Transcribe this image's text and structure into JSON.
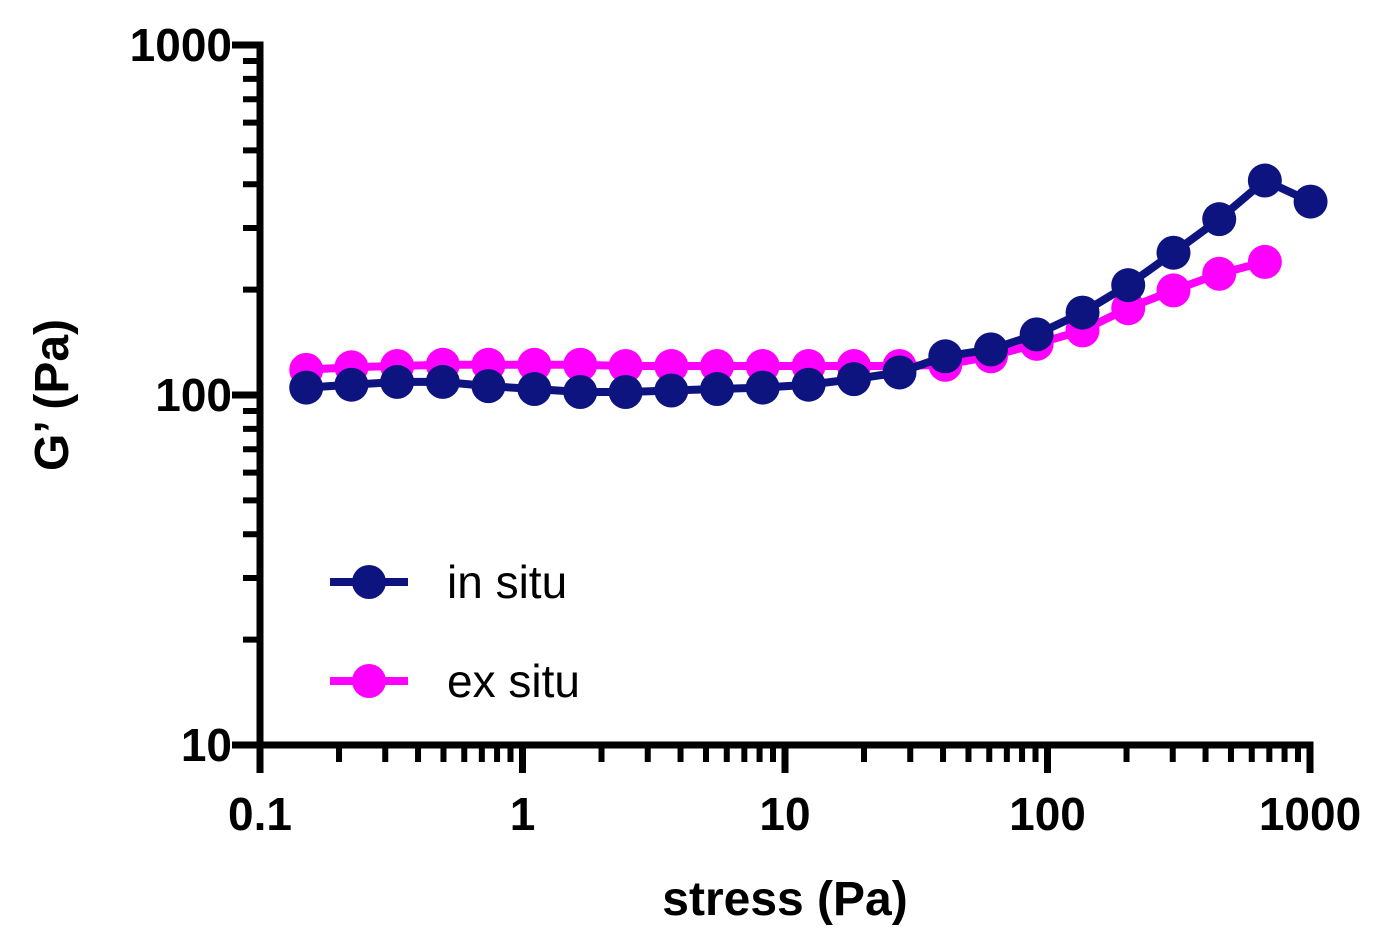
{
  "chart_data": {
    "type": "line",
    "title": "",
    "xlabel": "stress (Pa)",
    "ylabel": "G’ (Pa)",
    "xscale": "log",
    "yscale": "log",
    "xlim": [
      0.1,
      1000
    ],
    "ylim": [
      10,
      1000
    ],
    "xticks": [
      {
        "value": 0.1,
        "label": "0.1"
      },
      {
        "value": 1,
        "label": "1"
      },
      {
        "value": 10,
        "label": "10"
      },
      {
        "value": 100,
        "label": "100"
      },
      {
        "value": 1000,
        "label": "1000"
      }
    ],
    "yticks": [
      {
        "value": 10,
        "label": "10"
      },
      {
        "value": 100,
        "label": "100"
      },
      {
        "value": 1000,
        "label": "1000"
      }
    ],
    "grid": false,
    "legend_position": "lower-left",
    "series": [
      {
        "name": "ex situ",
        "color": "#ff00ff",
        "x": [
          0.15,
          0.223,
          0.333,
          0.497,
          0.742,
          1.11,
          1.66,
          2.47,
          3.69,
          5.51,
          8.22,
          12.3,
          18.3,
          27.3,
          40.8,
          60.9,
          90.9,
          136,
          203,
          302,
          451,
          673
        ],
        "y": [
          118,
          120,
          121,
          122,
          122,
          122,
          122,
          121,
          121,
          121,
          121,
          121,
          121,
          121,
          122,
          129,
          140,
          153,
          177,
          199,
          222,
          240
        ]
      },
      {
        "name": "in situ",
        "color": "#0d1480",
        "x": [
          0.15,
          0.223,
          0.333,
          0.497,
          0.742,
          1.11,
          1.66,
          2.47,
          3.69,
          5.51,
          8.22,
          12.3,
          18.3,
          27.3,
          40.8,
          60.9,
          90.9,
          136,
          203,
          302,
          451,
          673,
          1005
        ],
        "y": [
          105,
          107,
          109,
          109,
          106,
          104,
          102,
          102,
          103,
          104,
          105,
          107,
          111,
          116,
          129,
          135,
          149,
          172,
          206,
          255,
          318,
          410,
          357
        ]
      }
    ],
    "legend": [
      {
        "name": "in situ",
        "color": "#0d1480"
      },
      {
        "name": "ex situ",
        "color": "#ff00ff"
      }
    ]
  }
}
